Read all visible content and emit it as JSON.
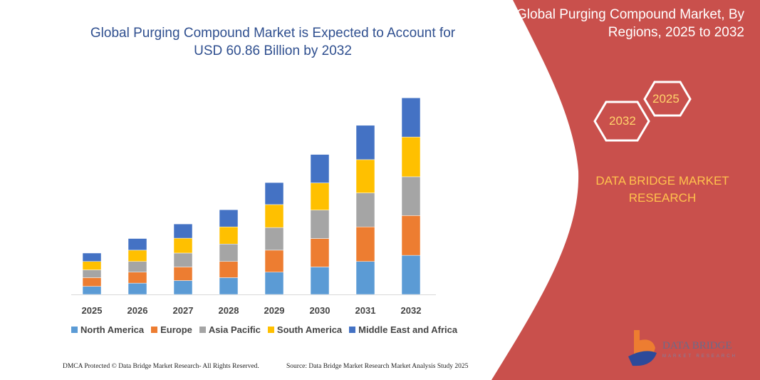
{
  "title": "Global Purging Compound Market is Expected to Account for USD 60.86 Billion by 2032",
  "title_lines": [
    "Global Purging Compound Market is Expected to Account for",
    "USD 60.86 Billion by 2032"
  ],
  "side_panel": {
    "title_lines": [
      "Global Purging Compound Market, By",
      "Regions, 2025 to 2032"
    ],
    "hex_start": "2025",
    "hex_end": "2032",
    "brand_lines": [
      "DATA BRIDGE MARKET",
      "RESEARCH"
    ],
    "logo_text": "DATA BRIDGE",
    "logo_subtext": "MARKET RESEARCH",
    "panel_color": "#c9504c"
  },
  "footer": {
    "left": "DMCA Protected © Data Bridge Market Research- All Rights Reserved.",
    "right": "Source: Data Bridge Market Research Market Analysis Study 2025"
  },
  "chart_data": {
    "type": "bar",
    "stacked": true,
    "categories": [
      "2025",
      "2026",
      "2027",
      "2028",
      "2029",
      "2030",
      "2031",
      "2032"
    ],
    "series": [
      {
        "name": "North America",
        "color": "#5b9bd5",
        "values": [
          2.5,
          3.5,
          4.3,
          5.2,
          6.9,
          8.5,
          10.2,
          12.1
        ]
      },
      {
        "name": "Europe",
        "color": "#ed7d31",
        "values": [
          2.7,
          3.4,
          4.2,
          5.0,
          6.8,
          8.8,
          10.7,
          12.3
        ]
      },
      {
        "name": "Asia Pacific",
        "color": "#a5a5a5",
        "values": [
          2.4,
          3.3,
          4.3,
          5.4,
          7.0,
          8.8,
          10.5,
          12.0
        ]
      },
      {
        "name": "South America",
        "color": "#ffc000",
        "values": [
          2.6,
          3.5,
          4.6,
          5.3,
          7.1,
          8.4,
          10.3,
          12.3
        ]
      },
      {
        "name": "Middle East and Africa",
        "color": "#4472c4",
        "values": [
          2.6,
          3.6,
          4.4,
          5.3,
          6.8,
          8.8,
          10.6,
          12.1
        ]
      }
    ],
    "ylim": [
      0,
      61
    ],
    "xlabel": "",
    "ylabel": "",
    "grid": false,
    "legend": "bottom"
  }
}
